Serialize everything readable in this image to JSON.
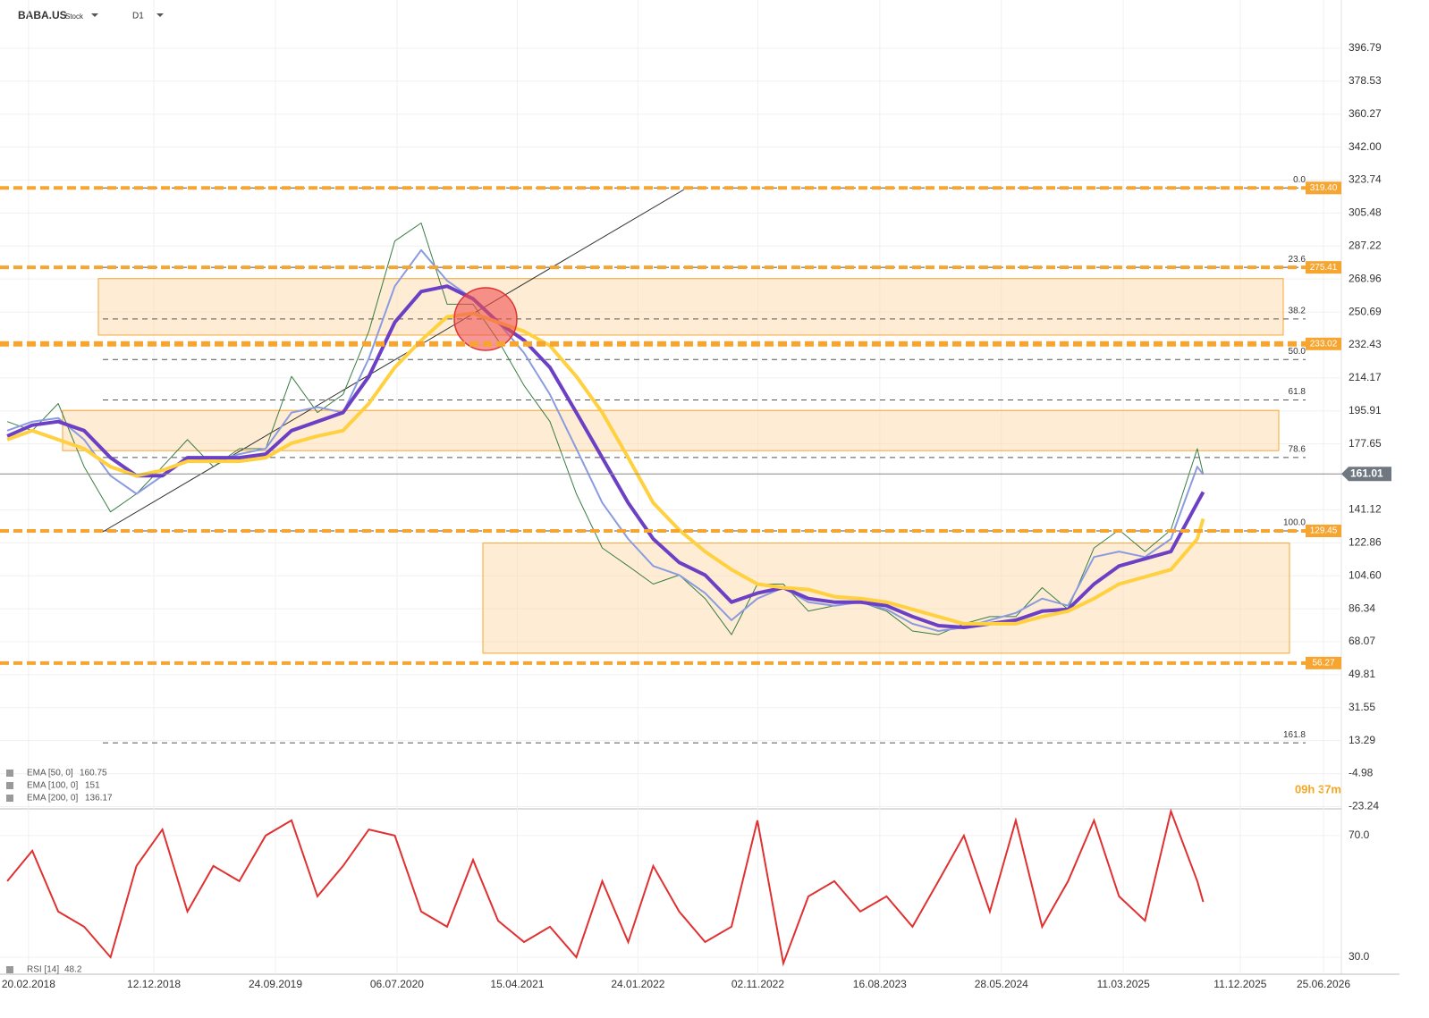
{
  "chart_data": [
    {
      "type": "line",
      "title": "BABA.US",
      "subtitle": "Stock",
      "timeframe": "D1",
      "countdown": "09h 37m",
      "xlim": [
        "15.12.2017",
        "06.08.2026"
      ],
      "ylim": [
        -24.5,
        423.5
      ],
      "yticks": [
        396.79,
        378.53,
        360.27,
        {
          "value": 342,
          "label": "342.00"
        },
        323.74,
        305.48,
        287.22,
        268.96,
        250.69,
        232.43,
        214.17,
        195.91,
        177.65,
        141.12,
        122.86,
        {
          "value": 104.6,
          "label": "104.60"
        },
        86.34,
        68.07,
        49.81,
        31.55,
        13.29,
        -4.98,
        -23.24
      ],
      "grid": true,
      "x": [
        "01.01.2018",
        "01.03.2018",
        "01.05.2018",
        "01.07.2018",
        "01.09.2018",
        "01.11.2018",
        "01.01.2019",
        "01.03.2019",
        "01.05.2019",
        "01.07.2019",
        "01.09.2019",
        "01.11.2019",
        "01.01.2020",
        "01.03.2020",
        "01.05.2020",
        "01.07.2020",
        "01.09.2020",
        "01.11.2020",
        "01.01.2021",
        "01.03.2021",
        "01.05.2021",
        "01.07.2021",
        "01.09.2021",
        "01.11.2021",
        "01.01.2022",
        "01.03.2022",
        "01.05.2022",
        "01.07.2022",
        "01.09.2022",
        "01.11.2022",
        "01.01.2023",
        "01.03.2023",
        "01.05.2023",
        "01.07.2023",
        "01.09.2023",
        "01.11.2023",
        "01.01.2024",
        "01.03.2024",
        "01.05.2024",
        "01.07.2024",
        "01.09.2024",
        "01.11.2024",
        "01.01.2025",
        "01.03.2025",
        "01.05.2025",
        "01.07.2025",
        "01.09.2025",
        "15.09.2025"
      ],
      "series": [
        {
          "color": "#3a7d44",
          "values": [
            190,
            185,
            200,
            165,
            140,
            150,
            165,
            180,
            165,
            175,
            175,
            215,
            195,
            205,
            240,
            290,
            300,
            255,
            255,
            235,
            210,
            190,
            150,
            120,
            110,
            100,
            105,
            92,
            72,
            100,
            100,
            85,
            88,
            90,
            85,
            74,
            72,
            78,
            82,
            82,
            98,
            86,
            120,
            130,
            118,
            130,
            175,
            161.01
          ]
        },
        {
          "name": "EMA [50, 0]",
          "color": "#8a9be0",
          "values": [
            185,
            190,
            192,
            180,
            160,
            150,
            160,
            170,
            168,
            172,
            175,
            195,
            198,
            195,
            225,
            265,
            285,
            268,
            258,
            245,
            228,
            205,
            175,
            145,
            125,
            110,
            105,
            95,
            80,
            92,
            98,
            90,
            88,
            90,
            86,
            78,
            74,
            76,
            80,
            84,
            92,
            88,
            115,
            118,
            115,
            125,
            165,
            160.75
          ]
        },
        {
          "name": "EMA [100, 0]",
          "color": "#6b40c4",
          "values": [
            182,
            188,
            190,
            185,
            170,
            160,
            160,
            170,
            170,
            170,
            172,
            185,
            190,
            195,
            215,
            245,
            262,
            265,
            258,
            245,
            235,
            220,
            195,
            170,
            145,
            125,
            112,
            105,
            90,
            95,
            98,
            92,
            90,
            90,
            88,
            82,
            77,
            76,
            78,
            80,
            85,
            86,
            100,
            110,
            114,
            118,
            145,
            151.0
          ]
        },
        {
          "name": "EMA [200, 0]",
          "color": "#ffd040",
          "values": [
            180,
            185,
            180,
            175,
            165,
            160,
            163,
            168,
            168,
            168,
            170,
            178,
            182,
            185,
            200,
            220,
            235,
            248,
            250,
            245,
            240,
            232,
            215,
            195,
            170,
            145,
            130,
            118,
            108,
            100,
            98,
            97,
            93,
            92,
            90,
            86,
            82,
            78,
            78,
            78,
            82,
            85,
            92,
            100,
            104,
            108,
            125,
            136.17
          ]
        }
      ],
      "levels": [
        {
          "value": 319.4,
          "label": "319.40"
        },
        {
          "value": 275.41,
          "label": "275.41"
        },
        {
          "value": 233.02,
          "label": "233.02"
        },
        {
          "value": 129.45,
          "label": "129.45"
        },
        {
          "value": 56.27,
          "label": "56.27"
        }
      ],
      "fib": [
        {
          "label": "0.0",
          "price": 319.4
        },
        {
          "label": "23.6",
          "price": 275.41
        },
        {
          "label": "38.2",
          "price": 246.84
        },
        {
          "label": "50.0",
          "price": 224.4
        },
        {
          "label": "61.8",
          "price": 202.0
        },
        {
          "label": "78.6",
          "price": 170.1
        },
        {
          "label": "100.0",
          "price": 129.45
        },
        {
          "label": "161.8",
          "price": 12.06
        }
      ],
      "zones": [
        {
          "top": 269.2,
          "bottom": 237.9
        },
        {
          "top": 196.2,
          "bottom": 173.9
        },
        {
          "top": 122.7,
          "bottom": 61.7
        }
      ]
    },
    {
      "type": "line",
      "name": "RSI [14]",
      "color": "#e03030",
      "xlim": [
        "15.12.2017",
        "06.08.2026"
      ],
      "ylim": [
        24.4,
        78.8
      ],
      "yticks": [
        {
          "value": 70,
          "label": "70.0"
        },
        {
          "value": 30,
          "label": "30.0"
        }
      ],
      "xticks": [
        "20.02.2018",
        "12.12.2018",
        "24.09.2019",
        "06.07.2020",
        "15.04.2021",
        "24.01.2022",
        "02.11.2022",
        "16.08.2023",
        "28.05.2024",
        "11.03.2025",
        "11.12.2025",
        "25.06.2026"
      ],
      "x": [
        "01.01.2018",
        "01.03.2018",
        "01.05.2018",
        "01.07.2018",
        "01.09.2018",
        "01.11.2018",
        "01.01.2019",
        "01.03.2019",
        "01.05.2019",
        "01.07.2019",
        "01.09.2019",
        "01.11.2019",
        "01.01.2020",
        "01.03.2020",
        "01.05.2020",
        "01.07.2020",
        "01.09.2020",
        "01.11.2020",
        "01.01.2021",
        "01.03.2021",
        "01.05.2021",
        "01.07.2021",
        "01.09.2021",
        "01.11.2021",
        "01.01.2022",
        "01.03.2022",
        "01.05.2022",
        "01.07.2022",
        "01.09.2022",
        "01.11.2022",
        "01.01.2023",
        "01.03.2023",
        "01.05.2023",
        "01.07.2023",
        "01.09.2023",
        "01.11.2023",
        "01.01.2024",
        "01.03.2024",
        "01.05.2024",
        "01.07.2024",
        "01.09.2024",
        "01.11.2024",
        "01.01.2025",
        "01.03.2025",
        "01.05.2025",
        "01.07.2025",
        "01.09.2025",
        "15.09.2025"
      ],
      "values": [
        55,
        65,
        45,
        40,
        30,
        60,
        72,
        45,
        60,
        55,
        70,
        75,
        50,
        60,
        72,
        70,
        45,
        40,
        62,
        42,
        35,
        40,
        30,
        55,
        35,
        60,
        45,
        35,
        40,
        75,
        28,
        50,
        55,
        45,
        50,
        40,
        55,
        70,
        45,
        75,
        40,
        55,
        75,
        50,
        42,
        78,
        55,
        48.2
      ]
    }
  ]
}
